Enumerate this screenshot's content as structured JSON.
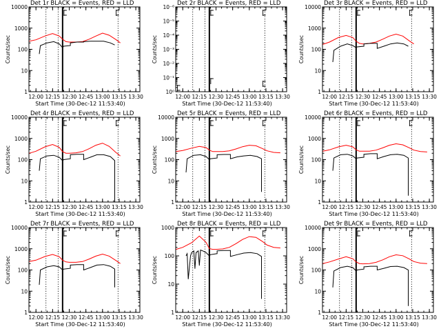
{
  "chart_data": [
    {
      "type": "line",
      "title": "Det 1r BLACK = Events, RED = LLD",
      "xlabel": "Start Time (30-Dec-12 11:53:40)",
      "ylabel": "Counts/sec",
      "xlim": [
        "11:53:40",
        "13:33:40"
      ],
      "x_ticks": [
        "12:00",
        "12:15",
        "12:30",
        "12:45",
        "13:00",
        "13:15",
        "13:30"
      ],
      "ylim": [
        1,
        10000
      ],
      "yscale": "log",
      "y_ticks": [
        "1",
        "10",
        "100",
        "1000",
        "10000"
      ],
      "vlines_dotted": [
        "12:09",
        "12:20",
        "13:14"
      ],
      "vline_solid": "12:24",
      "markers": [
        "12:24",
        "13:11"
      ],
      "series": [
        {
          "color": "#ff0000",
          "x": [
            "11:54",
            "12:00",
            "12:08",
            "12:15",
            "12:21",
            "12:24",
            "12:27",
            "12:30",
            "12:36",
            "12:42",
            "12:48",
            "12:54",
            "13:00",
            "13:06",
            "13:12",
            "13:16"
          ],
          "y": [
            240,
            280,
            420,
            550,
            420,
            300,
            230,
            220,
            220,
            230,
            300,
            420,
            580,
            460,
            290,
            200
          ]
        },
        {
          "color": "#000000",
          "x": [
            "12:03",
            "12:04",
            "12:10",
            "12:16",
            "12:21",
            "12:24",
            "12:25",
            "12:31",
            "12:31",
            "12:37",
            "12:43",
            "12:43",
            "12:49",
            "12:55",
            "13:01",
            "13:07",
            "13:11"
          ],
          "y": [
            60,
            150,
            200,
            230,
            180,
            120,
            140,
            150,
            200,
            220,
            220,
            230,
            240,
            240,
            240,
            200,
            160
          ]
        }
      ]
    },
    {
      "type": "line",
      "title": "Det 2r BLACK = Events, RED = LLD",
      "xlabel": "Start Time (30-Dec-12 11:53:40)",
      "ylabel": "Counts/sec",
      "xlim": [
        "11:53:40",
        "13:33:40"
      ],
      "x_ticks": [
        "12:00",
        "12:15",
        "12:30",
        "12:45",
        "13:00",
        "13:15",
        "13:30"
      ],
      "ylim": [
        1,
        1e-06
      ],
      "yscale": "log",
      "y_ticks": [
        "10⁰",
        "10⁻¹",
        "10⁻²",
        "10⁻³",
        "10⁻⁴",
        "10⁻⁵",
        "10⁻⁶"
      ],
      "vlines_dotted": [
        "12:09",
        "12:20",
        "13:14"
      ],
      "vline_solid": "12:24",
      "markers": [
        "11:54",
        "12:24",
        "13:11"
      ],
      "series": []
    },
    {
      "type": "line",
      "title": "Det 3r BLACK = Events, RED = LLD",
      "xlabel": "Start Time (30-Dec-12 11:53:40)",
      "ylabel": "Counts/sec",
      "xlim": [
        "11:53:40",
        "13:33:40"
      ],
      "x_ticks": [
        "12:00",
        "12:15",
        "12:30",
        "12:45",
        "13:00",
        "13:15",
        "13:30"
      ],
      "ylim": [
        1,
        10000
      ],
      "yscale": "log",
      "y_ticks": [
        "1",
        "10",
        "100",
        "1000",
        "10000"
      ],
      "vlines_dotted": [
        "12:09",
        "12:20",
        "13:14"
      ],
      "vline_solid": "12:24",
      "markers": [
        "12:24",
        "13:11"
      ],
      "series": [
        {
          "color": "#ff0000",
          "x": [
            "11:54",
            "12:00",
            "12:08",
            "12:15",
            "12:21",
            "12:24",
            "12:27",
            "12:30",
            "12:36",
            "12:42",
            "12:48",
            "12:54",
            "13:00",
            "13:06",
            "13:12",
            "13:16"
          ],
          "y": [
            170,
            220,
            360,
            450,
            360,
            240,
            190,
            180,
            190,
            220,
            300,
            420,
            520,
            420,
            250,
            180
          ]
        },
        {
          "color": "#000000",
          "x": [
            "12:03",
            "12:04",
            "12:10",
            "12:16",
            "12:21",
            "12:24",
            "12:25",
            "12:31",
            "12:31",
            "12:37",
            "12:43",
            "12:43",
            "12:49",
            "12:55",
            "13:01",
            "13:07",
            "13:11"
          ],
          "y": [
            25,
            90,
            140,
            180,
            150,
            120,
            130,
            140,
            180,
            190,
            190,
            110,
            140,
            180,
            200,
            180,
            140
          ]
        }
      ]
    },
    {
      "type": "line",
      "title": "Det 4r BLACK = Events, RED = LLD",
      "xlabel": "Start Time (30-Dec-12 11:53:40)",
      "ylabel": "Counts/sec",
      "xlim": [
        "11:53:40",
        "13:33:40"
      ],
      "x_ticks": [
        "12:00",
        "12:15",
        "12:30",
        "12:45",
        "13:00",
        "13:15",
        "13:30"
      ],
      "ylim": [
        1,
        10000
      ],
      "yscale": "log",
      "y_ticks": [
        "1",
        "10",
        "100",
        "1000",
        "10000"
      ],
      "vlines_dotted": [
        "12:09",
        "12:20",
        "13:14"
      ],
      "vline_solid": "12:24",
      "markers": [
        "12:24",
        "13:11"
      ],
      "series": [
        {
          "color": "#ff0000",
          "x": [
            "11:54",
            "12:00",
            "12:08",
            "12:15",
            "12:21",
            "12:24",
            "12:27",
            "12:30",
            "12:36",
            "12:42",
            "12:48",
            "12:54",
            "13:00",
            "13:06",
            "13:12",
            "13:16"
          ],
          "y": [
            200,
            250,
            400,
            520,
            380,
            240,
            200,
            200,
            210,
            240,
            330,
            480,
            600,
            420,
            220,
            150
          ]
        },
        {
          "color": "#000000",
          "x": [
            "12:03",
            "12:04",
            "12:10",
            "12:16",
            "12:21",
            "12:24",
            "12:25",
            "12:31",
            "12:31",
            "12:37",
            "12:43",
            "12:43",
            "12:49",
            "12:55",
            "13:01",
            "13:07",
            "13:11",
            "13:11"
          ],
          "y": [
            30,
            110,
            150,
            160,
            130,
            90,
            100,
            110,
            170,
            180,
            180,
            100,
            130,
            170,
            170,
            140,
            90,
            1
          ]
        }
      ]
    },
    {
      "type": "line",
      "title": "Det 5r BLACK = Events, RED = LLD",
      "xlabel": "Start Time (30-Dec-12 11:53:40)",
      "ylabel": "Counts/sec",
      "xlim": [
        "11:53:40",
        "13:33:40"
      ],
      "x_ticks": [
        "12:00",
        "12:15",
        "12:30",
        "12:45",
        "13:00",
        "13:15",
        "13:30"
      ],
      "ylim": [
        1,
        10000
      ],
      "yscale": "log",
      "y_ticks": [
        "1",
        "10",
        "100",
        "1000",
        "10000"
      ],
      "vlines_dotted": [
        "12:09",
        "12:20",
        "13:14"
      ],
      "vline_solid": "12:24",
      "markers": [
        "12:24",
        "13:11"
      ],
      "series": [
        {
          "color": "#ff0000",
          "x": [
            "11:54",
            "12:00",
            "12:08",
            "12:15",
            "12:21",
            "12:24",
            "12:27",
            "12:30",
            "12:36",
            "12:42",
            "12:48",
            "12:54",
            "13:00",
            "13:06",
            "13:12",
            "13:16",
            "13:22",
            "13:28"
          ],
          "y": [
            240,
            270,
            350,
            420,
            370,
            280,
            240,
            240,
            240,
            260,
            320,
            410,
            480,
            450,
            330,
            260,
            220,
            210
          ]
        },
        {
          "color": "#000000",
          "x": [
            "12:03",
            "12:04",
            "12:10",
            "12:16",
            "12:21",
            "12:24",
            "12:25",
            "12:31",
            "12:31",
            "12:37",
            "12:43",
            "12:43",
            "12:49",
            "12:55",
            "13:01",
            "13:07",
            "13:11",
            "13:11"
          ],
          "y": [
            25,
            110,
            160,
            170,
            140,
            100,
            110,
            120,
            170,
            175,
            175,
            110,
            135,
            150,
            160,
            140,
            110,
            3
          ]
        }
      ]
    },
    {
      "type": "line",
      "title": "Det 6r BLACK = Events, RED = LLD",
      "xlabel": "Start Time (30-Dec-12 11:53:40)",
      "ylabel": "Counts/sec",
      "xlim": [
        "11:53:40",
        "13:33:40"
      ],
      "x_ticks": [
        "12:00",
        "12:15",
        "12:30",
        "12:45",
        "13:00",
        "13:15",
        "13:30"
      ],
      "ylim": [
        1,
        10000
      ],
      "yscale": "log",
      "y_ticks": [
        "1",
        "10",
        "100",
        "1000",
        "10000"
      ],
      "vlines_dotted": [
        "12:09",
        "12:20",
        "13:14"
      ],
      "vline_solid": "12:24",
      "markers": [
        "12:24",
        "13:11"
      ],
      "series": [
        {
          "color": "#ff0000",
          "x": [
            "11:54",
            "12:00",
            "12:08",
            "12:15",
            "12:21",
            "12:24",
            "12:27",
            "12:30",
            "12:36",
            "12:42",
            "12:48",
            "12:54",
            "13:00",
            "13:06",
            "13:12",
            "13:16",
            "13:22",
            "13:28"
          ],
          "y": [
            250,
            290,
            400,
            480,
            400,
            290,
            250,
            250,
            250,
            280,
            360,
            480,
            560,
            500,
            360,
            280,
            240,
            230
          ]
        },
        {
          "color": "#000000",
          "x": [
            "12:03",
            "12:04",
            "12:10",
            "12:16",
            "12:21",
            "12:24",
            "12:25",
            "12:31",
            "12:31",
            "12:37",
            "12:43",
            "12:43",
            "12:49",
            "12:55",
            "13:01",
            "13:07",
            "13:11",
            "13:11"
          ],
          "y": [
            30,
            120,
            170,
            180,
            150,
            110,
            120,
            130,
            180,
            190,
            190,
            110,
            140,
            170,
            180,
            160,
            120,
            2
          ]
        }
      ]
    },
    {
      "type": "line",
      "title": "Det 7r BLACK = Events, RED = LLD",
      "xlabel": "Start Time (30-Dec-12 11:53:40)",
      "ylabel": "Counts/sec",
      "xlim": [
        "11:53:40",
        "13:33:40"
      ],
      "x_ticks": [
        "12:00",
        "12:15",
        "12:30",
        "12:45",
        "13:00",
        "13:15",
        "13:30"
      ],
      "ylim": [
        1,
        10000
      ],
      "yscale": "log",
      "y_ticks": [
        "1",
        "10",
        "100",
        "1000",
        "10000"
      ],
      "vlines_dotted": [
        "12:09",
        "12:20",
        "13:14"
      ],
      "vline_solid": "12:24",
      "markers": [
        "12:24",
        "13:11"
      ],
      "series": [
        {
          "color": "#ff0000",
          "x": [
            "11:54",
            "12:00",
            "12:08",
            "12:15",
            "12:21",
            "12:24",
            "12:27",
            "12:30",
            "12:36",
            "12:42",
            "12:48",
            "12:54",
            "13:00",
            "13:06",
            "13:12",
            "13:16"
          ],
          "y": [
            250,
            290,
            430,
            540,
            420,
            290,
            240,
            230,
            230,
            250,
            330,
            450,
            560,
            450,
            280,
            200
          ]
        },
        {
          "color": "#000000",
          "x": [
            "12:03",
            "12:04",
            "12:10",
            "12:16",
            "12:21",
            "12:24",
            "12:25",
            "12:31",
            "12:31",
            "12:37",
            "12:43",
            "12:43",
            "12:49",
            "12:55",
            "13:01",
            "13:07",
            "13:11",
            "13:11"
          ],
          "y": [
            20,
            100,
            140,
            160,
            140,
            100,
            110,
            120,
            170,
            180,
            180,
            100,
            130,
            170,
            180,
            150,
            110,
            15
          ]
        }
      ]
    },
    {
      "type": "line",
      "title": "Det 8r BLACK = Events, RED = LLD",
      "xlabel": "Start Time (30-Dec-12 11:53:40)",
      "ylabel": "Counts/sec",
      "xlim": [
        "11:53:40",
        "13:33:40"
      ],
      "x_ticks": [
        "12:00",
        "12:15",
        "12:30",
        "12:45",
        "13:00",
        "13:15",
        "13:30"
      ],
      "ylim": [
        1,
        1000
      ],
      "yscale": "log",
      "y_ticks": [
        "1",
        "10",
        "100",
        "1000"
      ],
      "vlines_dotted": [
        "12:09",
        "12:20",
        "13:14"
      ],
      "vline_solid": "12:24",
      "markers": [
        "12:24",
        "13:11"
      ],
      "series": [
        {
          "color": "#ff0000",
          "x": [
            "11:54",
            "12:00",
            "12:08",
            "12:15",
            "12:21",
            "12:24",
            "12:27",
            "12:30",
            "12:36",
            "12:42",
            "12:48",
            "12:54",
            "13:00",
            "13:06",
            "13:12",
            "13:16",
            "13:22",
            "13:28"
          ],
          "y": [
            170,
            200,
            290,
            500,
            300,
            180,
            170,
            170,
            175,
            200,
            270,
            380,
            480,
            450,
            320,
            240,
            200,
            190
          ]
        },
        {
          "color": "#000000",
          "x": [
            "12:03",
            "12:04",
            "12:05",
            "12:07",
            "12:08",
            "12:10",
            "12:11",
            "12:12",
            "12:14",
            "12:15",
            "12:16",
            "12:18",
            "12:21",
            "12:24",
            "12:25",
            "12:31",
            "12:31",
            "12:37",
            "12:43",
            "12:43",
            "12:49",
            "12:55",
            "13:01",
            "13:07",
            "13:11",
            "13:11"
          ],
          "y": [
            100,
            120,
            15,
            100,
            130,
            150,
            35,
            130,
            150,
            45,
            160,
            150,
            130,
            100,
            110,
            120,
            150,
            155,
            155,
            95,
            110,
            125,
            130,
            120,
            95,
            3
          ]
        }
      ]
    },
    {
      "type": "line",
      "title": "Det 9r BLACK = Events, RED = LLD",
      "xlabel": "Start Time (30-Dec-12 11:53:40)",
      "ylabel": "Counts/sec",
      "xlim": [
        "11:53:40",
        "13:33:40"
      ],
      "x_ticks": [
        "12:00",
        "12:15",
        "12:30",
        "12:45",
        "13:00",
        "13:15",
        "13:30"
      ],
      "ylim": [
        1,
        10000
      ],
      "yscale": "log",
      "y_ticks": [
        "1",
        "10",
        "100",
        "1000",
        "10000"
      ],
      "vlines_dotted": [
        "12:09",
        "12:20",
        "13:14"
      ],
      "vline_solid": "12:24",
      "markers": [
        "12:24",
        "13:11"
      ],
      "series": [
        {
          "color": "#ff0000",
          "x": [
            "11:54",
            "12:00",
            "12:08",
            "12:15",
            "12:21",
            "12:24",
            "12:27",
            "12:30",
            "12:36",
            "12:42",
            "12:48",
            "12:54",
            "13:00",
            "13:06",
            "13:12",
            "13:16",
            "13:22",
            "13:28"
          ],
          "y": [
            200,
            240,
            330,
            420,
            340,
            240,
            200,
            195,
            200,
            230,
            300,
            420,
            520,
            470,
            330,
            250,
            210,
            200
          ]
        },
        {
          "color": "#000000",
          "x": [
            "12:03",
            "12:04",
            "12:10",
            "12:16",
            "12:21",
            "12:24",
            "12:25",
            "12:31",
            "12:31",
            "12:37",
            "12:43",
            "12:43",
            "12:49",
            "12:55",
            "13:01",
            "13:07",
            "13:11",
            "13:11"
          ],
          "y": [
            15,
            90,
            130,
            150,
            130,
            90,
            100,
            110,
            140,
            150,
            150,
            100,
            120,
            145,
            150,
            130,
            100,
            2
          ]
        }
      ]
    }
  ]
}
